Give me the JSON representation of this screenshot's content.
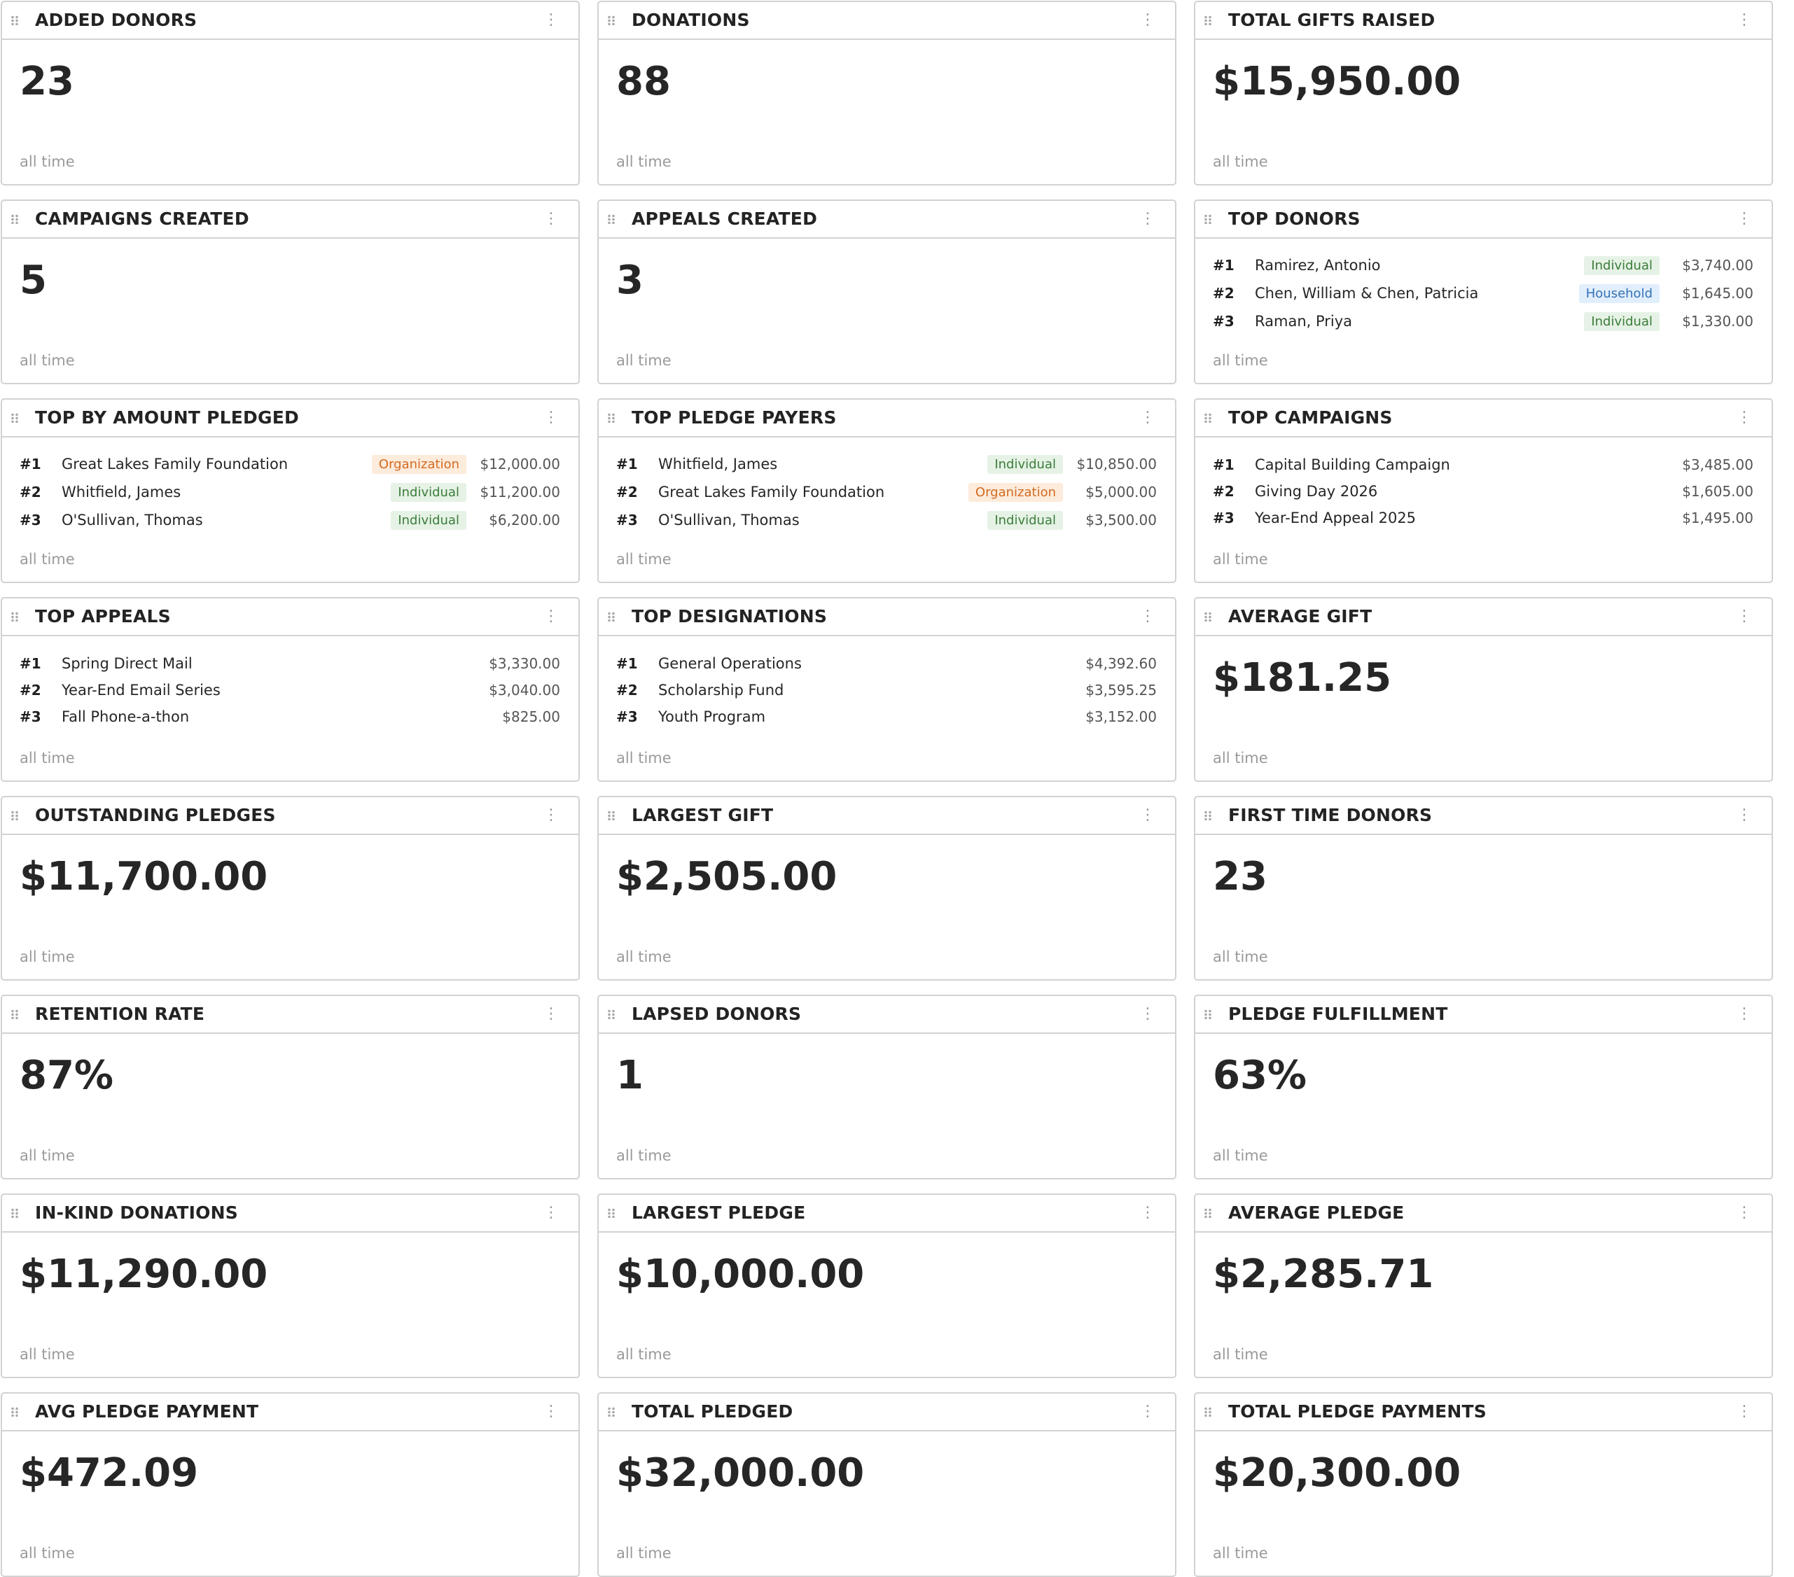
{
  "cards": [
    {
      "title": "ADDED DONORS",
      "value": "23",
      "footer": "all time"
    },
    {
      "title": "DONATIONS",
      "value": "88",
      "footer": "all time"
    },
    {
      "title": "TOTAL GIFTS RAISED",
      "value": "$15,950.00",
      "footer": "all time"
    },
    {
      "title": "CAMPAIGNS CREATED",
      "value": "5",
      "footer": "all time"
    },
    {
      "title": "APPEALS CREATED",
      "value": "3",
      "footer": "all time"
    },
    {
      "title": "TOP DONORS",
      "footer": "all time",
      "rows": [
        {
          "rank": "#1",
          "name": "Ramirez, Antonio",
          "badge": "Individual",
          "amount": "$3,740.00"
        },
        {
          "rank": "#2",
          "name": "Chen, William & Chen, Patricia",
          "badge": "Household",
          "amount": "$1,645.00"
        },
        {
          "rank": "#3",
          "name": "Raman, Priya",
          "badge": "Individual",
          "amount": "$1,330.00"
        }
      ]
    },
    {
      "title": "TOP BY AMOUNT PLEDGED",
      "footer": "all time",
      "rows": [
        {
          "rank": "#1",
          "name": "Great Lakes Family Foundation",
          "badge": "Organization",
          "amount": "$12,000.00"
        },
        {
          "rank": "#2",
          "name": "Whitfield, James",
          "badge": "Individual",
          "amount": "$11,200.00"
        },
        {
          "rank": "#3",
          "name": "O'Sullivan, Thomas",
          "badge": "Individual",
          "amount": "$6,200.00"
        }
      ]
    },
    {
      "title": "TOP PLEDGE PAYERS",
      "footer": "all time",
      "rows": [
        {
          "rank": "#1",
          "name": "Whitfield, James",
          "badge": "Individual",
          "amount": "$10,850.00"
        },
        {
          "rank": "#2",
          "name": "Great Lakes Family Foundation",
          "badge": "Organization",
          "amount": "$5,000.00"
        },
        {
          "rank": "#3",
          "name": "O'Sullivan, Thomas",
          "badge": "Individual",
          "amount": "$3,500.00"
        }
      ]
    },
    {
      "title": "TOP CAMPAIGNS",
      "footer": "all time",
      "rows": [
        {
          "rank": "#1",
          "name": "Capital Building Campaign",
          "amount": "$3,485.00"
        },
        {
          "rank": "#2",
          "name": "Giving Day 2026",
          "amount": "$1,605.00"
        },
        {
          "rank": "#3",
          "name": "Year-End Appeal 2025",
          "amount": "$1,495.00"
        }
      ]
    },
    {
      "title": "TOP APPEALS",
      "footer": "all time",
      "rows": [
        {
          "rank": "#1",
          "name": "Spring Direct Mail",
          "amount": "$3,330.00"
        },
        {
          "rank": "#2",
          "name": "Year-End Email Series",
          "amount": "$3,040.00"
        },
        {
          "rank": "#3",
          "name": "Fall Phone-a-thon",
          "amount": "$825.00"
        }
      ]
    },
    {
      "title": "TOP DESIGNATIONS",
      "footer": "all time",
      "rows": [
        {
          "rank": "#1",
          "name": "General Operations",
          "amount": "$4,392.60"
        },
        {
          "rank": "#2",
          "name": "Scholarship Fund",
          "amount": "$3,595.25"
        },
        {
          "rank": "#3",
          "name": "Youth Program",
          "amount": "$3,152.00"
        }
      ]
    },
    {
      "title": "AVERAGE GIFT",
      "value": "$181.25",
      "footer": "all time"
    },
    {
      "title": "OUTSTANDING PLEDGES",
      "value": "$11,700.00",
      "footer": "all time"
    },
    {
      "title": "LARGEST GIFT",
      "value": "$2,505.00",
      "footer": "all time"
    },
    {
      "title": "FIRST TIME DONORS",
      "value": "23",
      "footer": "all time"
    },
    {
      "title": "RETENTION RATE",
      "value": "87%",
      "footer": "all time"
    },
    {
      "title": "LAPSED DONORS",
      "value": "1",
      "footer": "all time"
    },
    {
      "title": "PLEDGE FULFILLMENT",
      "value": "63%",
      "footer": "all time"
    },
    {
      "title": "IN-KIND DONATIONS",
      "value": "$11,290.00",
      "footer": "all time"
    },
    {
      "title": "LARGEST PLEDGE",
      "value": "$10,000.00",
      "footer": "all time"
    },
    {
      "title": "AVERAGE PLEDGE",
      "value": "$2,285.71",
      "footer": "all time"
    },
    {
      "title": "AVG PLEDGE PAYMENT",
      "value": "$472.09",
      "footer": "all time"
    },
    {
      "title": "TOTAL PLEDGED",
      "value": "$32,000.00",
      "footer": "all time"
    },
    {
      "title": "TOTAL PLEDGE PAYMENTS",
      "value": "$20,300.00",
      "footer": "all time"
    }
  ]
}
